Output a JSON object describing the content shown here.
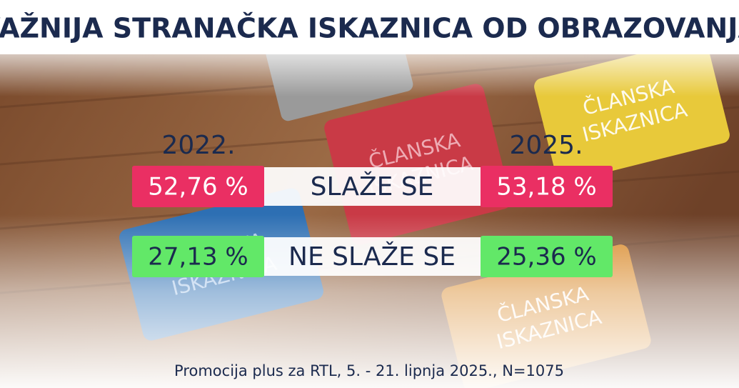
{
  "header": {
    "title": "VAŽNIJA STRANAČKA ISKAZNICA OD OBRAZOVANJA"
  },
  "table": {
    "columns": [
      "2022.",
      "2025."
    ],
    "rows": [
      {
        "label": "SLAŽE SE",
        "values": [
          "52,76 %",
          "53,18 %"
        ]
      },
      {
        "label": "NE SLAŽE SE",
        "values": [
          "27,13 %",
          "25,36 %"
        ]
      }
    ]
  },
  "cards": [
    {
      "lines": [
        "ČLANSKA",
        "ISKAZNICA"
      ]
    },
    {
      "lines": [
        "ČLANSKA",
        "ISKAZNICA"
      ]
    },
    {
      "lines": [
        "ČLANSKA",
        "ISKAZNICA"
      ]
    },
    {
      "lines": [
        "ČLANSKA",
        "ISKAZNICA"
      ]
    }
  ],
  "footer": {
    "source": "Promocija plus za RTL, 5. - 21. lipnja 2025., N=1075"
  }
}
